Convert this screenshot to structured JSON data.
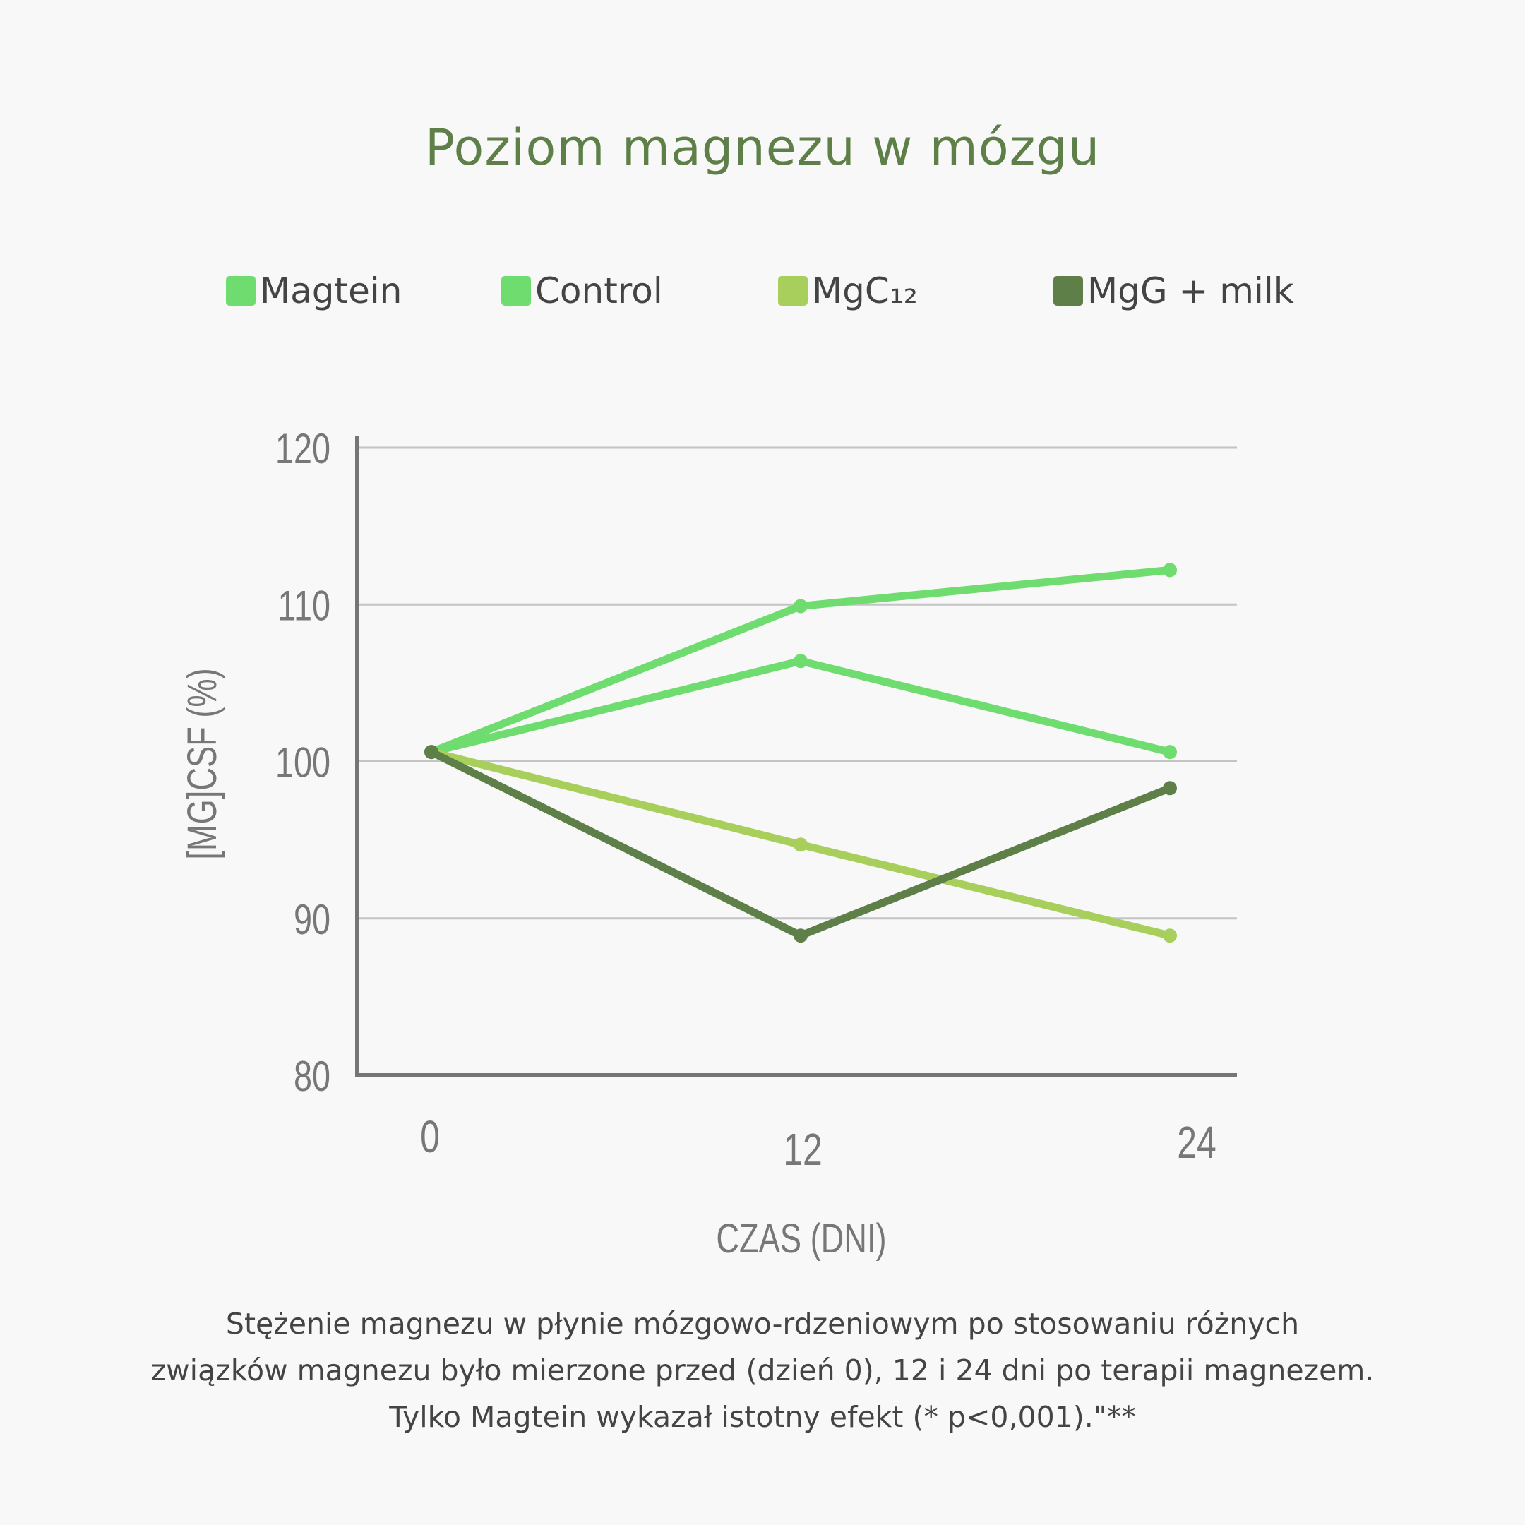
{
  "title": "Poziom magnezu w mózgu",
  "legend": [
    {
      "label": "Magtein",
      "color": "#6fdc6f"
    },
    {
      "label": "Control",
      "color": "#6fdc6f"
    },
    {
      "label": "MgC₁₂",
      "color": "#a8cf5b"
    },
    {
      "label": "MgG + milk",
      "color": "#5e8048"
    }
  ],
  "caption": {
    "line1": "Stężenie magnezu w płynie mózgowo-rdzeniowym po stosowaniu różnych",
    "line2": "związków magnezu było mierzone przed (dzień 0), 12 i 24 dni po terapii magnezem.",
    "line3": "Tylko Magtein wykazał istotny efekt (* p<0,001).\"**"
  },
  "chart_data": {
    "type": "line",
    "x": [
      0,
      12,
      24
    ],
    "xlabel": "CZAS (DNI)",
    "ylabel": "[MG]CSF (%)",
    "ylim": [
      80,
      120
    ],
    "yticks": [
      80,
      90,
      100,
      110,
      120
    ],
    "xticks": [
      "0",
      "12",
      "24"
    ],
    "grid": true,
    "legend_position": "top",
    "series": [
      {
        "name": "Magtein",
        "color": "#6fdc6f",
        "values": [
          100.6,
          109.9,
          112.2
        ]
      },
      {
        "name": "Control",
        "color": "#6fdc6f",
        "values": [
          100.6,
          106.4,
          100.6
        ]
      },
      {
        "name": "MgC₁₂",
        "color": "#a8cf5b",
        "values": [
          100.6,
          94.7,
          88.9
        ]
      },
      {
        "name": "MgG + milk",
        "color": "#5e8048",
        "values": [
          100.6,
          88.9,
          98.3
        ]
      }
    ]
  }
}
